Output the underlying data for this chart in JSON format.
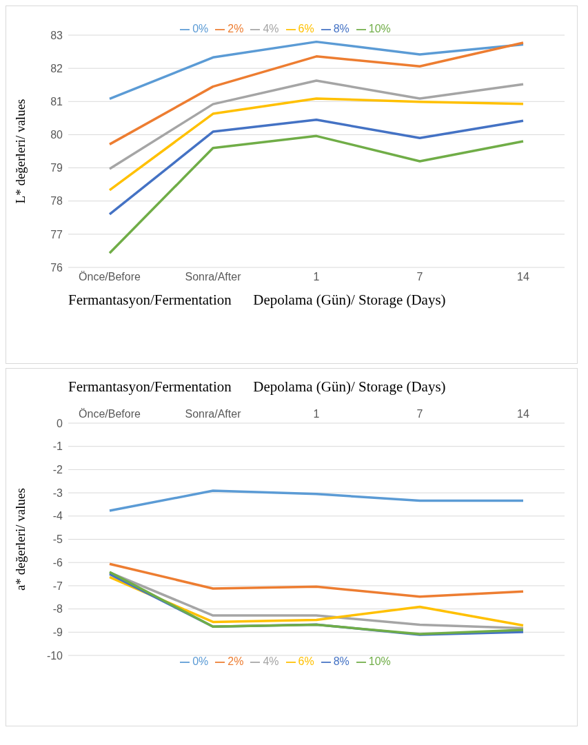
{
  "chart_data": [
    {
      "type": "line",
      "xlabel": "Fermantasyon/Fermentation      Depolama (Gün)/ Storage (Days)",
      "ylabel": "L* değerleri/ values",
      "categories": [
        "Önce/Before",
        "Sonra/After",
        "1",
        "7",
        "14"
      ],
      "series": [
        {
          "name": "0%",
          "color": "#5b9bd5",
          "values": [
            81.08,
            82.33,
            82.8,
            82.42,
            82.72
          ]
        },
        {
          "name": "2%",
          "color": "#ed7d31",
          "values": [
            79.71,
            81.45,
            82.36,
            82.06,
            82.77
          ]
        },
        {
          "name": "4%",
          "color": "#a5a5a5",
          "values": [
            78.97,
            80.92,
            81.63,
            81.09,
            81.52
          ]
        },
        {
          "name": "6%",
          "color": "#ffc000",
          "values": [
            78.33,
            80.63,
            81.09,
            80.99,
            80.93
          ]
        },
        {
          "name": "8%",
          "color": "#4472c4",
          "values": [
            77.6,
            80.09,
            80.45,
            79.9,
            80.42
          ]
        },
        {
          "name": "10%",
          "color": "#70ad47",
          "values": [
            76.43,
            79.6,
            79.96,
            79.2,
            79.8
          ]
        }
      ],
      "ylim": [
        76,
        83
      ],
      "yticks": [
        76,
        77,
        78,
        79,
        80,
        81,
        82,
        83
      ],
      "grid": "y",
      "legend": "top",
      "marker": "none",
      "line_style": "solid"
    },
    {
      "type": "line",
      "xlabel": "Fermantasyon/Fermentation      Depolama (Gün)/ Storage (Days)",
      "ylabel": "a* değerleri/  values",
      "categories": [
        "Önce/Before",
        "Sonra/After",
        "1",
        "7",
        "14"
      ],
      "series": [
        {
          "name": "0%",
          "color": "#5b9bd5",
          "values": [
            -3.77,
            -2.91,
            -3.05,
            -3.34,
            -3.34
          ]
        },
        {
          "name": "2%",
          "color": "#ed7d31",
          "values": [
            -6.06,
            -7.12,
            -7.04,
            -7.47,
            -7.25
          ]
        },
        {
          "name": "4%",
          "color": "#a5a5a5",
          "values": [
            -6.43,
            -8.28,
            -8.28,
            -8.68,
            -8.83
          ]
        },
        {
          "name": "6%",
          "color": "#ffc000",
          "values": [
            -6.63,
            -8.56,
            -8.47,
            -7.91,
            -8.71
          ]
        },
        {
          "name": "8%",
          "color": "#4472c4",
          "values": [
            -6.5,
            -8.76,
            -8.67,
            -9.11,
            -8.99
          ]
        },
        {
          "name": "10%",
          "color": "#70ad47",
          "values": [
            -6.41,
            -8.76,
            -8.68,
            -9.08,
            -8.9
          ]
        }
      ],
      "ylim": [
        -10,
        0
      ],
      "yticks": [
        -10,
        -9,
        -8,
        -7,
        -6,
        -5,
        -4,
        -3,
        -2,
        -1,
        0
      ],
      "grid": "y",
      "legend": "bottom",
      "marker": "none",
      "line_style": "solid"
    }
  ]
}
